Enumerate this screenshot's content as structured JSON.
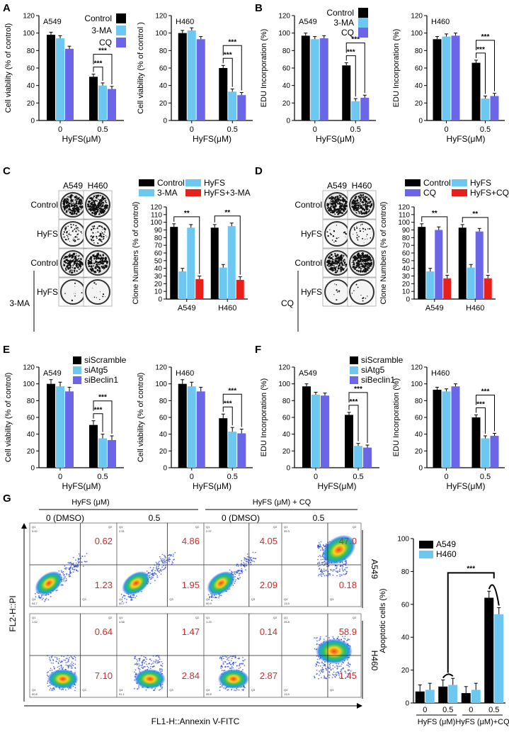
{
  "colors": {
    "black": "#000000",
    "cyan": "#6cc8f0",
    "purple": "#6b66e8",
    "red": "#e8201c"
  },
  "panel_labels": {
    "A": "A",
    "B": "B",
    "C": "C",
    "D": "D",
    "E": "E",
    "F": "F",
    "G": "G"
  },
  "x_groups": [
    "0",
    "0.5"
  ],
  "x_label": "HyFS(μM)",
  "chart_data": [
    {
      "id": "A1",
      "type": "bar",
      "title": "A549",
      "ylabel": "Cell viability (% of control)",
      "ylim": [
        0,
        120
      ],
      "yticks": [
        0,
        20,
        40,
        60,
        80,
        100,
        120
      ],
      "categories": [
        "0",
        "0.5"
      ],
      "xlabel": "HyFS(μM)",
      "legend": [
        "Control",
        "3-MA",
        "CQ"
      ],
      "series": [
        {
          "name": "Control",
          "values": [
            98,
            50
          ]
        },
        {
          "name": "3-MA",
          "values": [
            94,
            40
          ]
        },
        {
          "name": "CQ",
          "values": [
            82,
            36
          ]
        }
      ],
      "sig": [
        "***",
        "***"
      ]
    },
    {
      "id": "A2",
      "type": "bar",
      "title": "H460",
      "ylabel": "Cell viability (% of control )",
      "ylim": [
        0,
        120
      ],
      "yticks": [
        0,
        20,
        40,
        60,
        80,
        100,
        120
      ],
      "categories": [
        "0",
        "0.5"
      ],
      "xlabel": "HyFS(μM)",
      "series": [
        {
          "name": "Control",
          "values": [
            100,
            60
          ]
        },
        {
          "name": "3-MA",
          "values": [
            103,
            33
          ]
        },
        {
          "name": "CQ",
          "values": [
            93,
            29
          ]
        }
      ],
      "sig": [
        "***",
        "***"
      ]
    },
    {
      "id": "B1",
      "type": "bar",
      "title": "A549",
      "ylabel": "EDU Incorporation (%)",
      "ylim": [
        0,
        120
      ],
      "yticks": [
        0,
        20,
        40,
        60,
        80,
        100,
        120
      ],
      "categories": [
        "0",
        "0.5"
      ],
      "xlabel": "HyFS(μM)",
      "legend": [
        "Control",
        "3-MA",
        "CQ"
      ],
      "series": [
        {
          "name": "Control",
          "values": [
            97,
            63
          ]
        },
        {
          "name": "3-MA",
          "values": [
            93,
            22
          ]
        },
        {
          "name": "CQ",
          "values": [
            94,
            26
          ]
        }
      ],
      "sig": [
        "***",
        "***"
      ]
    },
    {
      "id": "B2",
      "type": "bar",
      "title": "H460",
      "ylabel": "EDU Incorporation (%)",
      "ylim": [
        0,
        120
      ],
      "yticks": [
        0,
        20,
        40,
        60,
        80,
        100,
        120
      ],
      "categories": [
        "0",
        "0.5"
      ],
      "xlabel": "HyFS(μM)",
      "series": [
        {
          "name": "Control",
          "values": [
            93,
            66
          ]
        },
        {
          "name": "3-MA",
          "values": [
            96,
            25
          ]
        },
        {
          "name": "CQ",
          "values": [
            97,
            28
          ]
        }
      ],
      "sig": [
        "***",
        "***"
      ]
    },
    {
      "id": "C",
      "type": "bar",
      "ylabel": "Clone Numbers (% of control)",
      "ylim": [
        0,
        120
      ],
      "yticks": [
        0,
        10,
        20,
        30,
        40,
        50,
        60,
        70,
        80,
        90,
        100,
        110,
        120
      ],
      "categories": [
        "A549",
        "H460"
      ],
      "legend": [
        "Control",
        "HyFS",
        "3-MA",
        "HyFS+3-MA"
      ],
      "series": [
        {
          "name": "Control",
          "values": [
            94,
            93
          ]
        },
        {
          "name": "HyFS",
          "values": [
            36,
            41
          ]
        },
        {
          "name": "3-MA",
          "values": [
            93,
            95
          ]
        },
        {
          "name": "HyFS+3-MA",
          "values": [
            26,
            25
          ]
        }
      ],
      "sig": [
        "**",
        "**"
      ]
    },
    {
      "id": "D",
      "type": "bar",
      "ylabel": "Clone Numbers (% of control)",
      "ylim": [
        0,
        120
      ],
      "yticks": [
        0,
        10,
        20,
        30,
        40,
        50,
        60,
        70,
        80,
        90,
        100,
        110,
        120
      ],
      "categories": [
        "A549",
        "H460"
      ],
      "legend": [
        "Control",
        "HyFS",
        "CQ",
        "HyFS+CQ"
      ],
      "series": [
        {
          "name": "Control",
          "values": [
            94,
            93
          ]
        },
        {
          "name": "HyFS",
          "values": [
            36,
            41
          ]
        },
        {
          "name": "CQ",
          "values": [
            90,
            88
          ]
        },
        {
          "name": "HyFS+CQ",
          "values": [
            27,
            27
          ]
        }
      ],
      "sig": [
        "**",
        "**"
      ]
    },
    {
      "id": "E1",
      "type": "bar",
      "title": "A549",
      "ylabel": "Cell viability (% of control)",
      "ylim": [
        0,
        120
      ],
      "yticks": [
        0,
        20,
        40,
        60,
        80,
        100,
        120
      ],
      "categories": [
        "0",
        "0.5"
      ],
      "xlabel": "HyFS(μM)",
      "legend": [
        "siScramble",
        "siAtg5",
        "siBeclin1"
      ],
      "series": [
        {
          "name": "siScramble",
          "values": [
            100,
            51
          ]
        },
        {
          "name": "siAtg5",
          "values": [
            97,
            35
          ]
        },
        {
          "name": "siBeclin1",
          "values": [
            91,
            33
          ]
        }
      ],
      "sig": [
        "***",
        "***"
      ]
    },
    {
      "id": "E2",
      "type": "bar",
      "title": "H460",
      "ylabel": "Cell viability (% of control)",
      "ylim": [
        0,
        120
      ],
      "yticks": [
        0,
        20,
        40,
        60,
        80,
        100,
        120
      ],
      "categories": [
        "0",
        "0.5"
      ],
      "xlabel": "HyFS(μM)",
      "series": [
        {
          "name": "siScramble",
          "values": [
            100,
            59
          ]
        },
        {
          "name": "siAtg5",
          "values": [
            97,
            43
          ]
        },
        {
          "name": "siBeclin1",
          "values": [
            91,
            41
          ]
        }
      ],
      "sig": [
        "***",
        "***"
      ]
    },
    {
      "id": "F1",
      "type": "bar",
      "title": "A549",
      "ylabel": "EDU Incorporation (%)",
      "ylim": [
        0,
        120
      ],
      "yticks": [
        0,
        20,
        40,
        60,
        80,
        100,
        120
      ],
      "categories": [
        "0",
        "0.5"
      ],
      "xlabel": "HyFS(μM)",
      "legend": [
        "siScramble",
        "siAtg5",
        "siBeclin1"
      ],
      "series": [
        {
          "name": "siScramble",
          "values": [
            97,
            63
          ]
        },
        {
          "name": "siAtg5",
          "values": [
            87,
            26
          ]
        },
        {
          "name": "siBeclin1",
          "values": [
            86,
            24
          ]
        }
      ],
      "sig": [
        "***",
        "***"
      ]
    },
    {
      "id": "F2",
      "type": "bar",
      "title": "H460",
      "ylabel": "EDU Incorporation (%)",
      "ylim": [
        0,
        120
      ],
      "yticks": [
        0,
        20,
        40,
        60,
        80,
        100,
        120
      ],
      "categories": [
        "0",
        "0.5"
      ],
      "xlabel": "HyFS(μM)",
      "series": [
        {
          "name": "siScramble",
          "values": [
            93,
            60
          ]
        },
        {
          "name": "siAtg5",
          "values": [
            91,
            35
          ]
        },
        {
          "name": "siBeclin1",
          "values": [
            97,
            38
          ]
        }
      ],
      "sig": [
        "***",
        "***"
      ]
    },
    {
      "id": "G",
      "type": "bar",
      "ylabel": "Apoptotic cells (%)",
      "ylim": [
        0,
        100
      ],
      "yticks": [
        0,
        20,
        40,
        60,
        80,
        100
      ],
      "categories": [
        "0",
        "0.5",
        "0",
        "0.5"
      ],
      "xgroups": [
        "HyFS (μM)",
        "HyFS (μM)+CQ"
      ],
      "legend": [
        "A549",
        "H460"
      ],
      "series": [
        {
          "name": "A549",
          "values": [
            7,
            10,
            6,
            64
          ]
        },
        {
          "name": "H460",
          "values": [
            8,
            11,
            8,
            54
          ]
        }
      ],
      "sig": [
        "***"
      ]
    }
  ],
  "colony": {
    "C": {
      "cols": [
        "A549",
        "H460"
      ],
      "rows": [
        "Control",
        "HyFS",
        "Control",
        "HyFS"
      ],
      "group": "3-MA"
    },
    "D": {
      "cols": [
        "A549",
        "H460"
      ],
      "rows": [
        "Control",
        "HyFS",
        "Control",
        "HyFS"
      ],
      "group": "CQ"
    }
  },
  "flow": {
    "top_left_group": "HyFS (μM)",
    "top_right_group": "HyFS (μM) + CQ",
    "col_labels": [
      "0 (DMSO)",
      "0.5",
      "0 (DMSO)",
      "0.5"
    ],
    "row_labels": [
      "A549",
      "H460"
    ],
    "ylabel": "FL2-H::PI",
    "xlabel": "FL1-H::Annexin V-FITC",
    "quadrant_names": [
      "Q1",
      "Q2",
      "Q3",
      "Q4"
    ],
    "plots": [
      {
        "q1": "3.42",
        "q2": "0.62",
        "q3": "1.23",
        "q4": "94.7"
      },
      {
        "q1": "2.51",
        "q2": "4.86",
        "q3": "1.95",
        "q4": "90.7"
      },
      {
        "q1": "2.97",
        "q2": "4.05",
        "q3": "2.09",
        "q4": "90.9"
      },
      {
        "q1": "39.3",
        "q2": "47.0",
        "q3": "0.18",
        "q4": "13.5"
      },
      {
        "q1": "1.62",
        "q2": "0.64",
        "q3": "7.10",
        "q4": "90.6"
      },
      {
        "q1": "4.58",
        "q2": "1.47",
        "q3": "2.84",
        "q4": "91.1"
      },
      {
        "q1": "1.23",
        "q2": "0.14",
        "q3": "2.87",
        "q4": "95.8"
      },
      {
        "q1": "26.8",
        "q2": "58.9",
        "q3": "1.45",
        "q4": "13.5"
      }
    ]
  }
}
